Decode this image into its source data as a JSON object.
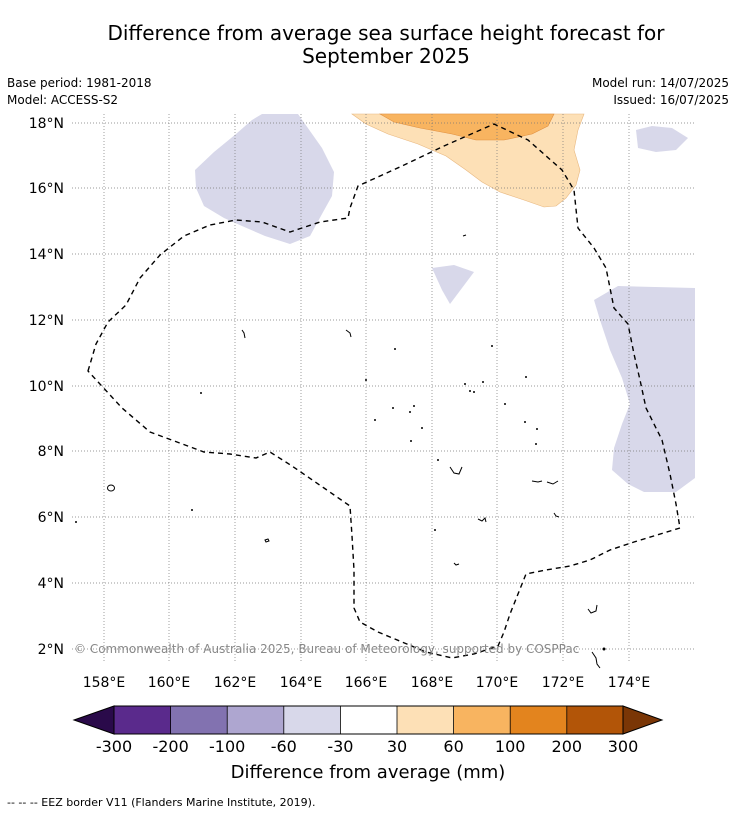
{
  "title": {
    "line1": "Difference from average sea surface height forecast for",
    "line2": "September 2025"
  },
  "meta": {
    "base_period": "Base period: 1981-2018",
    "model": "Model: ACCESS-S2",
    "model_run": "Model run: 14/07/2025",
    "issued": "Issued: 16/07/2025"
  },
  "map": {
    "lon_labels": [
      "158°E",
      "160°E",
      "162°E",
      "164°E",
      "166°E",
      "168°E",
      "170°E",
      "172°E",
      "174°E"
    ],
    "lat_labels": [
      "2°N",
      "4°N",
      "6°N",
      "8°N",
      "10°N",
      "12°N",
      "14°N",
      "16°N",
      "18°N"
    ],
    "lon_range": [
      157,
      176
    ],
    "lat_range": [
      1.5,
      18.3
    ],
    "copyright": "© Commonwealth of Australia 2025, Bureau of Meteorology, supported by COSPPac",
    "gridlines": true
  },
  "colorbar": {
    "ticks": [
      "-300",
      "-200",
      "-100",
      "-60",
      "-30",
      "30",
      "60",
      "100",
      "200",
      "300"
    ],
    "colors": [
      "#2a0a4a",
      "#5a2a8c",
      "#8272b0",
      "#aea6d0",
      "#d8d8ea",
      "#ffffff",
      "#fde0b6",
      "#f8b460",
      "#e3841e",
      "#b25508",
      "#7a3606"
    ],
    "label": "Difference from average (mm)"
  },
  "footer": "--  --  -- EEZ border V11 (Flanders Marine Institute, 2019)."
}
